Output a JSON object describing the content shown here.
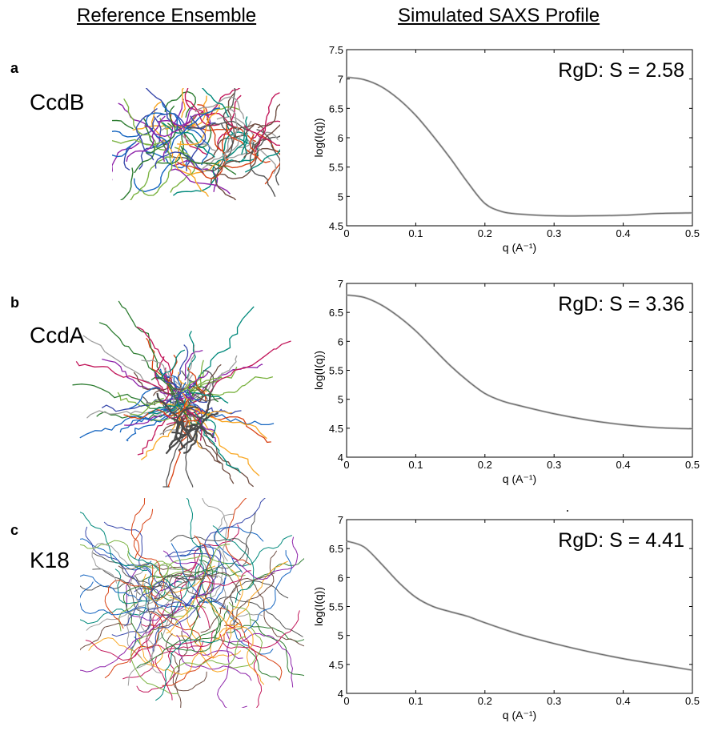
{
  "headers": {
    "left": "Reference Ensemble",
    "right": "Simulated SAXS Profile"
  },
  "panels": [
    {
      "letter": "a",
      "protein": "CcdB"
    },
    {
      "letter": "b",
      "protein": "CcdA"
    },
    {
      "letter": "c",
      "protein": "K18"
    }
  ],
  "chart_data": [
    {
      "type": "line",
      "annotation": "RgD: S = 2.58",
      "xlabel": "q (A⁻¹)",
      "ylabel": "log(I(q))",
      "xlim": [
        0,
        0.5
      ],
      "ylim": [
        4.5,
        7.5
      ],
      "xticks": [
        0,
        0.1,
        0.2,
        0.3,
        0.4,
        0.5
      ],
      "yticks": [
        4.5,
        5,
        5.5,
        6,
        6.5,
        7,
        7.5
      ],
      "x": [
        0,
        0.025,
        0.05,
        0.075,
        0.1,
        0.125,
        0.15,
        0.175,
        0.2,
        0.225,
        0.25,
        0.3,
        0.35,
        0.4,
        0.45,
        0.5
      ],
      "series": [
        {
          "values": [
            7.03,
            6.99,
            6.87,
            6.66,
            6.38,
            6.03,
            5.65,
            5.24,
            4.88,
            4.74,
            4.7,
            4.67,
            4.67,
            4.68,
            4.71,
            4.72
          ]
        }
      ],
      "line_color": "#666666"
    },
    {
      "type": "line",
      "annotation": "RgD: S = 3.36",
      "xlabel": "q (A⁻¹)",
      "ylabel": "log(I(q))",
      "xlim": [
        0,
        0.5
      ],
      "ylim": [
        4,
        7
      ],
      "xticks": [
        0,
        0.1,
        0.2,
        0.3,
        0.4,
        0.5
      ],
      "yticks": [
        4,
        4.5,
        5,
        5.5,
        6,
        6.5,
        7
      ],
      "x": [
        0,
        0.025,
        0.05,
        0.075,
        0.1,
        0.125,
        0.15,
        0.175,
        0.2,
        0.225,
        0.25,
        0.3,
        0.35,
        0.4,
        0.45,
        0.5
      ],
      "series": [
        {
          "values": [
            6.8,
            6.76,
            6.63,
            6.43,
            6.18,
            5.88,
            5.58,
            5.32,
            5.1,
            4.97,
            4.89,
            4.75,
            4.64,
            4.56,
            4.51,
            4.49
          ]
        }
      ],
      "line_color": "#666666"
    },
    {
      "type": "line",
      "annotation": "RgD: S = 4.41",
      "xlabel": "q (A⁻¹)",
      "ylabel": "log(I(q))",
      "xlim": [
        0,
        0.5
      ],
      "ylim": [
        4,
        7
      ],
      "xticks": [
        0,
        0.1,
        0.2,
        0.3,
        0.4,
        0.5
      ],
      "yticks": [
        4,
        4.5,
        5,
        5.5,
        6,
        6.5,
        7
      ],
      "x": [
        0,
        0.025,
        0.05,
        0.075,
        0.1,
        0.125,
        0.15,
        0.175,
        0.2,
        0.25,
        0.3,
        0.35,
        0.4,
        0.45,
        0.5
      ],
      "series": [
        {
          "values": [
            6.63,
            6.53,
            6.24,
            5.92,
            5.66,
            5.5,
            5.41,
            5.33,
            5.22,
            5.02,
            4.86,
            4.72,
            4.6,
            4.5,
            4.4
          ]
        }
      ],
      "line_color": "#666666"
    }
  ]
}
